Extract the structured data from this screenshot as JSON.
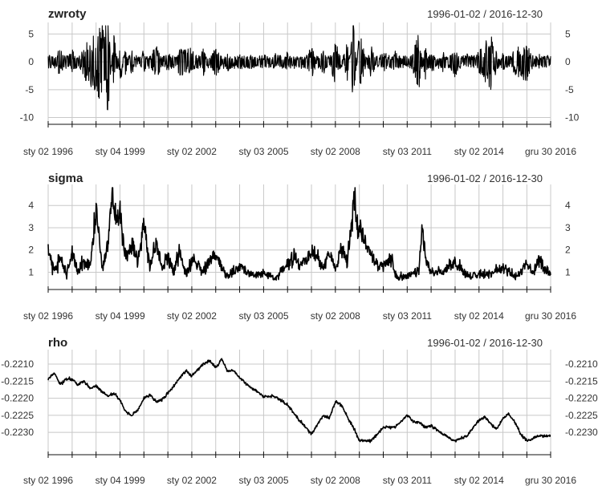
{
  "chart_data": [
    {
      "type": "line",
      "title": "zwroty",
      "date_range": "1996-01-02 / 2016-12-30",
      "x_start": "1996-01-02",
      "x_end": "2016-12-30",
      "ylim": [
        -10.5,
        6.5
      ],
      "yticks": [
        5,
        0,
        -5,
        -10
      ],
      "ytick_labels": [
        "5",
        "0",
        "-5",
        "-10"
      ],
      "xtick_dates": [
        "1996-01-02",
        "1999-01-04",
        "2002-01-02",
        "2005-01-03",
        "2008-01-02",
        "2011-01-03",
        "2014-01-02",
        "2016-12-30"
      ],
      "xtick_labels": [
        "sty 02 1996",
        "sty 04 1999",
        "sty 02 2002",
        "sty 03 2005",
        "sty 02 2008",
        "sty 03 2011",
        "sty 02 2014",
        "gru 30 2016"
      ],
      "grid": true,
      "series": [
        {
          "x": [
            "1996-01-02",
            "1996-07-01",
            "1997-01-02",
            "1997-07-01",
            "1998-01-02",
            "1998-07-01",
            "1998-10-01",
            "1999-01-04",
            "1999-04-01",
            "1999-07-01",
            "2000-01-03",
            "2000-07-03",
            "2001-01-02",
            "2001-07-02",
            "2002-01-02",
            "2002-07-01",
            "2003-01-02",
            "2003-07-01",
            "2004-01-02",
            "2004-07-01",
            "2005-01-03",
            "2005-07-01",
            "2006-01-02",
            "2006-07-03",
            "2007-01-02",
            "2007-07-02",
            "2008-01-02",
            "2008-07-01",
            "2008-10-01",
            "2009-01-02",
            "2009-07-01",
            "2010-01-04",
            "2010-07-01",
            "2011-01-03",
            "2011-07-01",
            "2011-10-03",
            "2012-01-02",
            "2012-07-02",
            "2013-01-02",
            "2013-07-01",
            "2014-01-02",
            "2014-07-01",
            "2015-01-02",
            "2015-07-01",
            "2016-01-04",
            "2016-07-01",
            "2016-12-30"
          ],
          "y": [
            1.0,
            -2.5,
            2.5,
            -3.0,
            -5.5,
            -9.5,
            5.5,
            -4.5,
            3.0,
            -2.5,
            2.5,
            -3.5,
            2.0,
            -2.5,
            -2.5,
            2.5,
            -3.0,
            2.0,
            -2.0,
            1.5,
            -1.5,
            1.5,
            -2.0,
            1.5,
            -3.0,
            2.5,
            -4.0,
            3.5,
            -7.5,
            5.5,
            -3.0,
            2.5,
            -2.0,
            1.5,
            -5.5,
            3.5,
            -2.5,
            2.0,
            -3.0,
            1.5,
            -2.0,
            -5.0,
            2.0,
            -2.5,
            -3.5,
            1.5,
            -1.0
          ]
        }
      ]
    },
    {
      "type": "line",
      "title": "sigma",
      "date_range": "1996-01-02 / 2016-12-30",
      "x_start": "1996-01-02",
      "x_end": "2016-12-30",
      "ylim": [
        0.55,
        4.8
      ],
      "yticks": [
        4,
        3,
        2,
        1
      ],
      "ytick_labels": [
        "4",
        "3",
        "2",
        "1"
      ],
      "xtick_dates": [
        "1996-01-02",
        "1999-01-04",
        "2002-01-02",
        "2005-01-03",
        "2008-01-02",
        "2011-01-03",
        "2014-01-02",
        "2016-12-30"
      ],
      "xtick_labels": [
        "sty 02 1996",
        "sty 04 1999",
        "sty 02 2002",
        "sty 03 2005",
        "sty 02 2008",
        "sty 03 2011",
        "sty 02 2014",
        "gru 30 2016"
      ],
      "grid": true,
      "series": [
        {
          "x": [
            "1996-01-02",
            "1996-04-01",
            "1996-07-01",
            "1996-10-01",
            "1997-01-02",
            "1997-04-01",
            "1997-07-01",
            "1997-10-01",
            "1998-01-02",
            "1998-04-01",
            "1998-07-01",
            "1998-09-01",
            "1998-10-15",
            "1999-01-04",
            "1999-04-01",
            "1999-07-01",
            "1999-10-01",
            "2000-01-03",
            "2000-04-03",
            "2000-07-03",
            "2000-10-02",
            "2001-01-02",
            "2001-04-02",
            "2001-07-02",
            "2001-10-01",
            "2002-01-02",
            "2002-07-01",
            "2003-01-02",
            "2003-07-01",
            "2004-01-02",
            "2004-07-01",
            "2005-01-03",
            "2005-07-01",
            "2006-01-02",
            "2006-05-15",
            "2006-07-03",
            "2007-01-02",
            "2007-07-02",
            "2007-10-01",
            "2008-01-02",
            "2008-04-01",
            "2008-07-01",
            "2008-10-15",
            "2008-12-01",
            "2009-02-02",
            "2009-04-01",
            "2009-07-01",
            "2009-10-01",
            "2010-01-04",
            "2010-05-17",
            "2010-07-01",
            "2011-01-03",
            "2011-07-01",
            "2011-08-15",
            "2011-10-03",
            "2012-01-02",
            "2012-07-02",
            "2013-01-02",
            "2013-07-01",
            "2014-01-02",
            "2014-07-01",
            "2015-01-02",
            "2015-07-01",
            "2015-10-01",
            "2016-01-04",
            "2016-04-01",
            "2016-07-01",
            "2016-12-30"
          ],
          "y": [
            2.0,
            1.0,
            1.8,
            0.9,
            1.8,
            1.0,
            1.5,
            1.3,
            3.9,
            1.2,
            2.2,
            4.7,
            3.5,
            3.6,
            1.6,
            2.4,
            1.5,
            3.2,
            1.2,
            2.3,
            1.2,
            1.6,
            1.0,
            1.9,
            0.9,
            1.5,
            1.1,
            1.8,
            0.8,
            1.3,
            0.8,
            1.0,
            0.7,
            1.4,
            1.8,
            1.2,
            2.0,
            1.2,
            1.9,
            1.1,
            2.2,
            1.3,
            4.4,
            3.1,
            3.0,
            2.2,
            1.8,
            1.4,
            1.2,
            1.7,
            0.8,
            0.8,
            1.1,
            3.0,
            1.7,
            1.0,
            1.0,
            1.5,
            0.8,
            0.9,
            1.0,
            1.3,
            0.8,
            1.0,
            1.4,
            1.0,
            1.5,
            0.9
          ]
        }
      ]
    },
    {
      "type": "line",
      "title": "rho",
      "date_range": "1996-01-02 / 2016-12-30",
      "x_start": "1996-01-02",
      "x_end": "2016-12-30",
      "ylim": [
        -0.22335,
        -0.22067
      ],
      "yticks": [
        -0.221,
        -0.2215,
        -0.222,
        -0.2225,
        -0.223
      ],
      "ytick_labels": [
        "-0.2210",
        "-0.2215",
        "-0.2220",
        "-0.2225",
        "-0.2230"
      ],
      "xtick_dates": [
        "1996-01-02",
        "1999-01-04",
        "2002-01-02",
        "2005-01-03",
        "2008-01-02",
        "2011-01-03",
        "2014-01-02",
        "2016-12-30"
      ],
      "xtick_labels": [
        "sty 02 1996",
        "sty 04 1999",
        "sty 02 2002",
        "sty 03 2005",
        "sty 02 2008",
        "sty 03 2011",
        "sty 02 2014",
        "gru 30 2016"
      ],
      "grid": true,
      "series": [
        {
          "x": [
            "1996-01-02",
            "1996-04-01",
            "1996-07-01",
            "1996-10-01",
            "1997-01-02",
            "1997-04-01",
            "1997-07-01",
            "1997-10-01",
            "1998-01-02",
            "1998-04-01",
            "1998-07-01",
            "1998-10-01",
            "1999-01-04",
            "1999-04-01",
            "1999-07-01",
            "1999-10-01",
            "2000-01-03",
            "2000-04-03",
            "2000-07-03",
            "2000-10-02",
            "2001-01-02",
            "2001-04-02",
            "2001-07-02",
            "2001-10-01",
            "2002-01-02",
            "2002-04-01",
            "2002-07-01",
            "2002-10-01",
            "2003-01-02",
            "2003-04-01",
            "2003-07-01",
            "2003-10-01",
            "2004-01-02",
            "2004-07-01",
            "2005-01-03",
            "2005-07-01",
            "2006-01-02",
            "2006-07-03",
            "2007-01-02",
            "2007-07-02",
            "2007-10-01",
            "2008-01-02",
            "2008-04-01",
            "2008-07-01",
            "2008-10-01",
            "2009-01-02",
            "2009-07-01",
            "2010-01-04",
            "2010-07-01",
            "2011-01-03",
            "2011-04-01",
            "2011-07-01",
            "2011-10-03",
            "2012-01-02",
            "2012-07-02",
            "2013-01-02",
            "2013-07-01",
            "2014-01-02",
            "2014-04-01",
            "2014-07-01",
            "2014-10-01",
            "2015-01-02",
            "2015-04-01",
            "2015-07-01",
            "2015-10-01",
            "2016-01-04",
            "2016-07-01",
            "2016-12-30"
          ],
          "y": [
            -0.22145,
            -0.22125,
            -0.2216,
            -0.22145,
            -0.22145,
            -0.2216,
            -0.2215,
            -0.2217,
            -0.22165,
            -0.2218,
            -0.22195,
            -0.22185,
            -0.22205,
            -0.2224,
            -0.2225,
            -0.22235,
            -0.222,
            -0.2219,
            -0.2221,
            -0.22205,
            -0.22185,
            -0.22165,
            -0.2214,
            -0.2212,
            -0.22135,
            -0.22115,
            -0.221,
            -0.2209,
            -0.2211,
            -0.22085,
            -0.2212,
            -0.2212,
            -0.2214,
            -0.2217,
            -0.22195,
            -0.22195,
            -0.2222,
            -0.22265,
            -0.22305,
            -0.2225,
            -0.2226,
            -0.2221,
            -0.2222,
            -0.22255,
            -0.22285,
            -0.22325,
            -0.22325,
            -0.22285,
            -0.22285,
            -0.2225,
            -0.2227,
            -0.2227,
            -0.22285,
            -0.2228,
            -0.22305,
            -0.22325,
            -0.2231,
            -0.22265,
            -0.22255,
            -0.22275,
            -0.2229,
            -0.2226,
            -0.22245,
            -0.2227,
            -0.22305,
            -0.22325,
            -0.2231,
            -0.2231
          ]
        }
      ]
    }
  ]
}
